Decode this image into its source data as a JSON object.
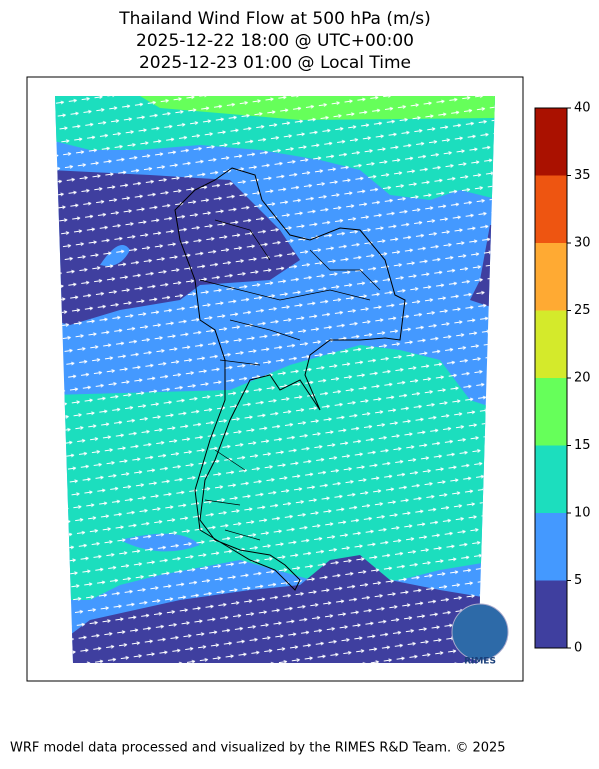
{
  "title_lines": [
    "Thailand Wind Flow at 500 hPa (m/s)",
    "2025-12-22 18:00 @ UTC+00:00",
    "2025-12-23 01:00 @ Local Time"
  ],
  "colorbar": {
    "lim": [
      0,
      40
    ],
    "ticks": [
      0,
      5,
      10,
      15,
      20,
      25,
      30,
      35,
      40
    ],
    "colors": [
      "#3f3f9f",
      "#4499ff",
      "#1cdebe",
      "#66ff5a",
      "#d4ea2b",
      "#ffaa33",
      "#ee5511",
      "#aa1100"
    ]
  },
  "logo_text": "RIMES",
  "footer": "WRF model data processed and visualized by the RIMES R&D Team. © 2025"
}
